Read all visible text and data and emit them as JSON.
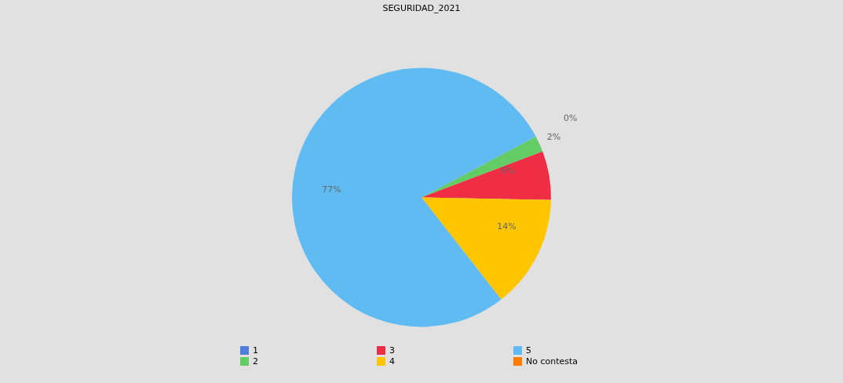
{
  "chart_data": {
    "type": "pie",
    "title": "SEGURIDAD_2021",
    "categories": [
      "1",
      "2",
      "3",
      "4",
      "5",
      "No contesta"
    ],
    "values": [
      0,
      2,
      6,
      14,
      77,
      0
    ],
    "colors": [
      "#4f7bd9",
      "#64cc64",
      "#ef2e45",
      "#ffc600",
      "#60bbf2",
      "#ff7a00"
    ],
    "value_labels": [
      "0%",
      "2%",
      "6%",
      "14%",
      "77%",
      null
    ],
    "legend": "bottom"
  }
}
